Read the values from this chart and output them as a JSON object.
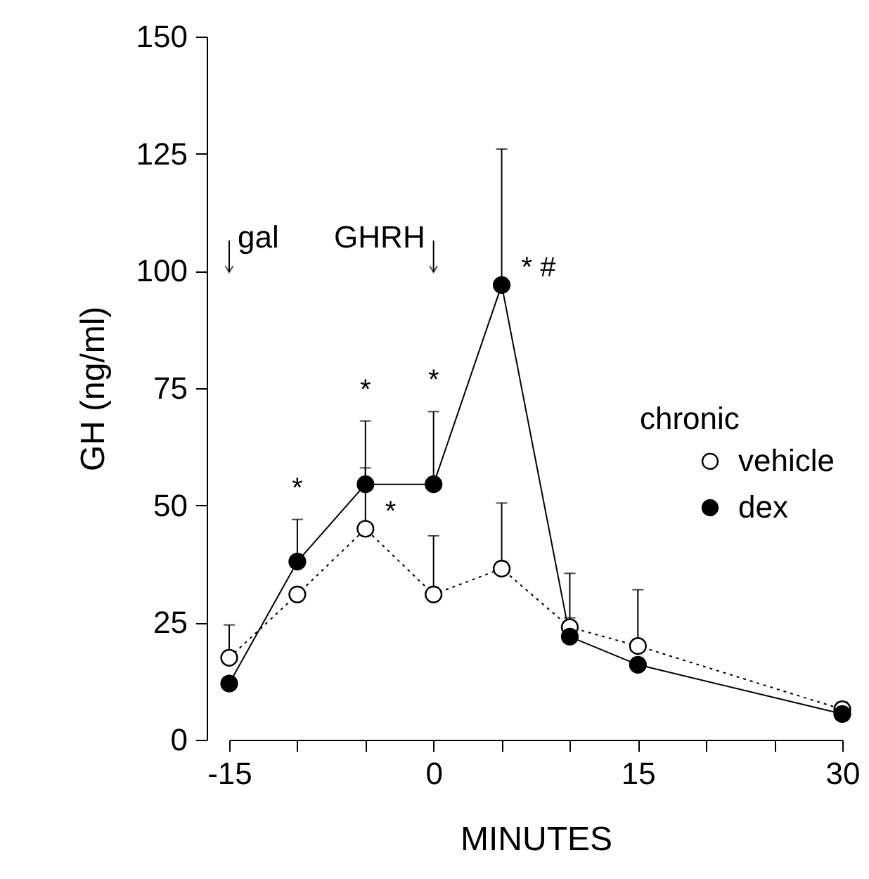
{
  "chart_data": {
    "type": "line",
    "xlabel": "MINUTES",
    "ylabel": "GH (ng/ml)",
    "legend_title": "chronic",
    "x": [
      -15,
      -10,
      -5,
      0,
      5,
      10,
      15,
      30
    ],
    "series": [
      {
        "name": "vehicle",
        "color": "#ffffff",
        "line_style": "dotted",
        "values": [
          17.5,
          31,
          45,
          31,
          36.5,
          24,
          20,
          6.5
        ],
        "errors": [
          [
            17.5,
            24.5
          ],
          null,
          [
            45,
            68
          ],
          [
            31,
            43.5
          ],
          [
            36.5,
            50.5
          ],
          [
            24,
            35.5
          ],
          [
            20,
            32
          ],
          [
            6.5,
            8
          ]
        ]
      },
      {
        "name": "dex",
        "color": "#000000",
        "line_style": "solid",
        "values": [
          12,
          38,
          54.5,
          54.5,
          97,
          22,
          16,
          5.5
        ],
        "errors": [
          null,
          [
            38,
            47
          ],
          [
            54.5,
            58
          ],
          [
            54.5,
            70
          ],
          [
            97,
            126
          ],
          [
            22,
            26
          ],
          null,
          null
        ]
      }
    ],
    "xlim": [
      -15,
      30
    ],
    "ylim": [
      0,
      150
    ],
    "xticks": [
      -15,
      {
        "value": -10,
        "label": null
      },
      {
        "value": -5,
        "label": null
      },
      0,
      {
        "value": 5,
        "label": null
      },
      {
        "value": 10,
        "label": null
      },
      15,
      {
        "value": 20,
        "label": null
      },
      {
        "value": 25,
        "label": null
      },
      30
    ],
    "yticks": [
      0,
      25,
      50,
      75,
      100,
      125,
      150
    ],
    "marker": "circle",
    "grid": false,
    "legend": "right",
    "ref_lines": [
      {
        "axis": "x",
        "value": -15,
        "label": "gal"
      },
      {
        "axis": "x",
        "value": 0,
        "label": "GHRH"
      }
    ],
    "annotations": [
      {
        "text": "*",
        "x": -10,
        "y": 47
      },
      {
        "text": "*",
        "x": -5,
        "y": 68
      },
      {
        "text": "*",
        "x": -5,
        "y": 45
      },
      {
        "text": "*",
        "x": 0,
        "y": 70
      },
      {
        "text": "*   #",
        "x": 5,
        "y": 97
      }
    ]
  }
}
